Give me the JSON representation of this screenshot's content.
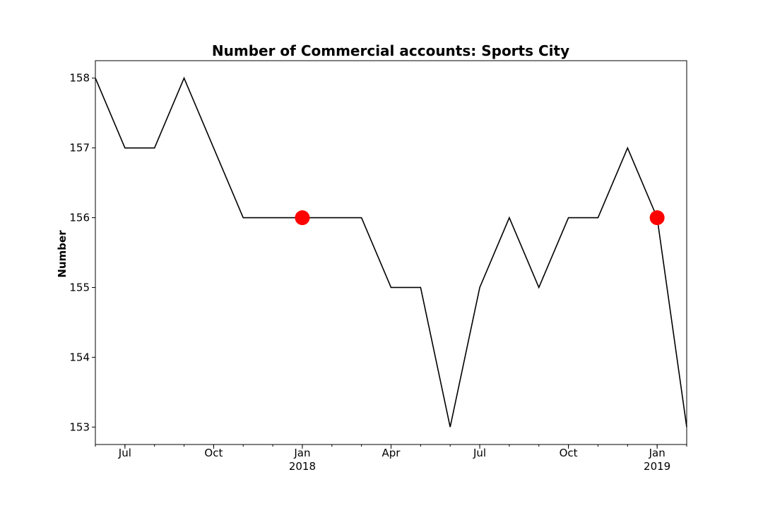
{
  "chart_data": {
    "type": "line",
    "title": "Number of Commercial accounts: Sports City",
    "xlabel": "",
    "ylabel": "Number",
    "x": [
      "2017-06",
      "2017-07",
      "2017-08",
      "2017-09",
      "2017-10",
      "2017-11",
      "2017-12",
      "2018-01",
      "2018-02",
      "2018-03",
      "2018-04",
      "2018-05",
      "2018-06",
      "2018-07",
      "2018-08",
      "2018-09",
      "2018-10",
      "2018-11",
      "2018-12",
      "2019-01",
      "2019-02"
    ],
    "series": [
      {
        "values": [
          158,
          157,
          157,
          158,
          157,
          156,
          156,
          156,
          156,
          156,
          155,
          155,
          153,
          155,
          156,
          155,
          156,
          156,
          157,
          156,
          153
        ],
        "color": "#000000"
      }
    ],
    "highlights": [
      {
        "x": "2018-01",
        "y": 156,
        "color": "#ff0000"
      },
      {
        "x": "2019-01",
        "y": 156,
        "color": "#ff0000"
      }
    ],
    "xlim": [
      "2017-06",
      "2019-02"
    ],
    "ylim": [
      152.75,
      158.25
    ],
    "yticks": [
      153,
      154,
      155,
      156,
      157,
      158
    ],
    "xticks_major": [
      {
        "x": "2017-07",
        "label": "Jul"
      },
      {
        "x": "2017-10",
        "label": "Oct"
      },
      {
        "x": "2018-01",
        "label": "Jan",
        "sublabel": "2018"
      },
      {
        "x": "2018-04",
        "label": "Apr"
      },
      {
        "x": "2018-07",
        "label": "Jul"
      },
      {
        "x": "2018-10",
        "label": "Oct"
      },
      {
        "x": "2019-01",
        "label": "Jan",
        "sublabel": "2019"
      }
    ],
    "grid": false
  }
}
